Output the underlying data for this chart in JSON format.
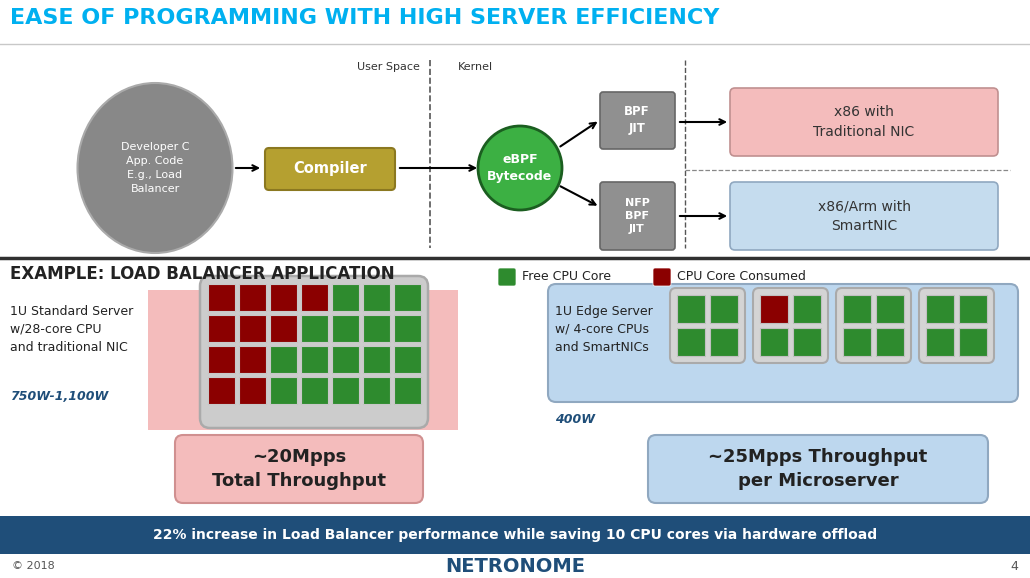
{
  "title": "EASE OF PROGRAMMING WITH HIGH SERVER EFFICIENCY",
  "title_color": "#00B0F0",
  "bg_color": "#FFFFFF",
  "section2_title": "EXAMPLE: LOAD BALANCER APPLICATION",
  "footer_text": "22% increase in Load Balancer performance while saving 10 CPU cores via hardware offload",
  "footer_bg": "#1F4E79",
  "footer_color": "#FFFFFF",
  "copyright": "© 2018",
  "netronome": "NETRONOME",
  "page_num": "4",
  "dev_circle_text": "Developer C\nApp. Code\nE.g., Load\nBalancer",
  "compiler_text": "Compiler",
  "ebpf_text": "eBPF\nBytecode",
  "bpf_jit_text": "BPF\nJIT",
  "nfp_bpf_text": "NFP\nBPF\nJIT",
  "x86_trad_text": "x86 with\nTraditional NIC",
  "x86_arm_text": "x86/Arm with\nSmartNIC",
  "user_space_text": "User Space",
  "kernel_text": "Kernel",
  "server1_label": "1U Standard Server\nw/28-core CPU\nand traditional NIC",
  "server1_power": "750W-1,100W",
  "server1_throughput": "~20Mpps\nTotal Throughput",
  "server2_label": "1U Edge Server\nw/ 4-core CPUs\nand SmartNICs",
  "server2_power": "400W",
  "server2_throughput": "~25Mpps Throughput\nper Microserver",
  "legend_free": "Free CPU Core",
  "legend_consumed": "CPU Core Consumed",
  "green_color": "#2E8B2E",
  "red_color": "#8B0000",
  "pink_bg": "#F4BCBC",
  "blue_bg": "#BDD7EE",
  "compiler_color": "#B5A030",
  "ebpf_color": "#3CB043",
  "circle_color": "#888888",
  "bpf_box_color": "#909090",
  "x86_trad_color": "#F4BCBC",
  "x86_arm_color": "#C5DCEE",
  "divider_color": "#404040",
  "grid_bg_color": "#CCCCCC",
  "mini_box_color": "#D0D0D0"
}
